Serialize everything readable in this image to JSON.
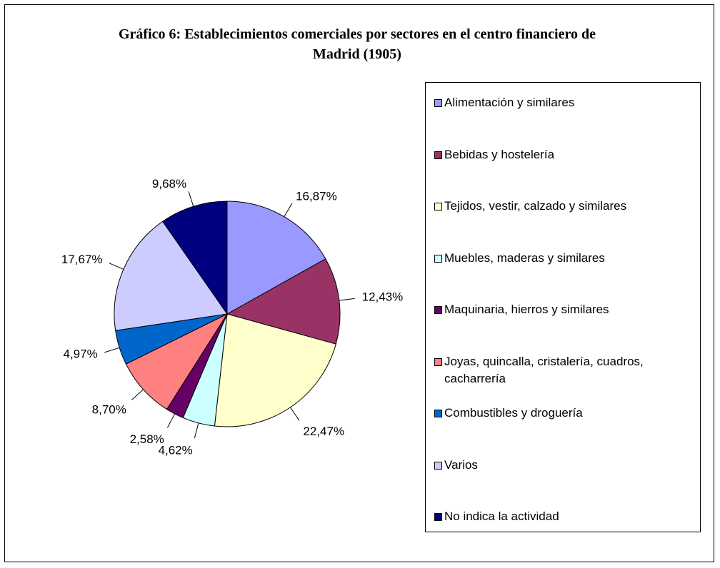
{
  "chart_data": {
    "type": "pie",
    "title": "Gráfico 6: Establecimientos comerciales por sectores en el centro financiero de Madrid (1905)",
    "categories": [
      "Alimentación y similares",
      "Bebidas y hostelería",
      "Tejidos, vestir, calzado y similares",
      "Muebles, maderas y similares",
      "Maquinaria, hierros y similares",
      "Joyas, quincalla, cristalería, cuadros, cacharrería",
      "Combustibles y droguería",
      "Varios",
      "No indica la actividad"
    ],
    "values": [
      16.87,
      12.43,
      22.47,
      4.62,
      2.58,
      8.7,
      4.97,
      17.67,
      9.68
    ],
    "value_labels": [
      "16,87%",
      "12,43%",
      "22,47%",
      "4,62%",
      "2,58%",
      "8,70%",
      "4,97%",
      "17,67%",
      "9,68%"
    ],
    "colors": [
      "#9999ff",
      "#993366",
      "#ffffcc",
      "#ccffff",
      "#660066",
      "#ff8080",
      "#0066cc",
      "#ccccff",
      "#000080"
    ],
    "legend": "right"
  }
}
